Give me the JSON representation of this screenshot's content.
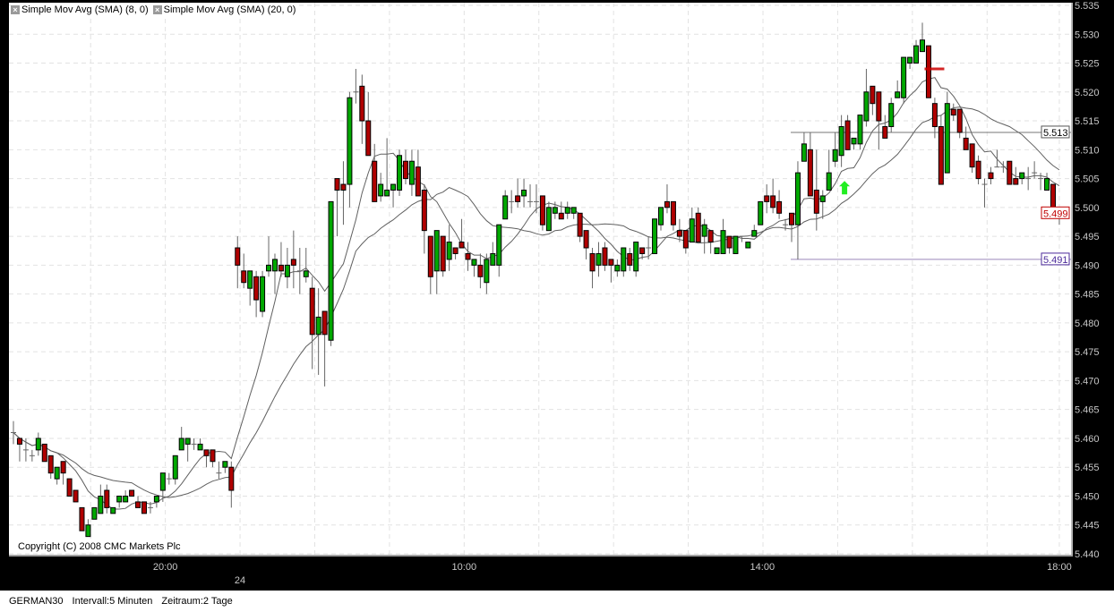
{
  "legend": [
    {
      "label": "Simple Mov Avg (SMA) (8, 0)",
      "icon": "close-icon",
      "period": 8
    },
    {
      "label": "Simple Mov Avg (SMA) (20, 0)",
      "icon": "close-icon",
      "period": 20
    }
  ],
  "copyright": "Copyright (C) 2008 CMC Markets Plc",
  "status": {
    "instrument": "GERMAN30",
    "interval": "Intervall:5 Minuten",
    "period": "Zeitraum:2 Tage"
  },
  "colors": {
    "up": "#00a800",
    "down": "#b00000",
    "sma": "#606060",
    "background": "#000000",
    "plot": "#ffffff",
    "signal_arrow": "#22ee22",
    "signal_marker": "#cc0000",
    "line_high": "#777777",
    "line_low": "#9a88bb"
  },
  "chart_data": {
    "type": "candlestick",
    "title": "",
    "ylim": [
      5.44,
      5.535
    ],
    "y_step": 0.005,
    "y_ticks": [
      "5.535",
      "5.530",
      "5.525",
      "5.520",
      "5.515",
      "5.510",
      "5.505",
      "5.500",
      "5.495",
      "5.490",
      "5.485",
      "5.480",
      "5.475",
      "5.470",
      "5.465",
      "5.460",
      "5.455",
      "5.450",
      "5.445",
      "5.440"
    ],
    "x_ticks": [
      {
        "label": "20:00",
        "index": 24.4,
        "row": 1
      },
      {
        "label": "24",
        "index": 36.4,
        "row": 2
      },
      {
        "label": "10:00",
        "index": 72.4,
        "row": 1
      },
      {
        "label": "14:00",
        "index": 120.3,
        "row": 1
      },
      {
        "label": "18:00",
        "index": 168,
        "row": 1
      }
    ],
    "grid": true,
    "ohlc_fields": [
      "open",
      "high",
      "low",
      "close"
    ],
    "candles": [
      [
        5.461,
        5.463,
        5.459,
        5.461
      ],
      [
        5.46,
        5.46,
        5.456,
        5.459
      ],
      [
        5.458,
        5.46,
        5.456,
        5.458
      ],
      [
        5.457,
        5.458,
        5.456,
        5.457
      ],
      [
        5.458,
        5.461,
        5.457,
        5.46
      ],
      [
        5.459,
        5.459,
        5.456,
        5.456
      ],
      [
        5.457,
        5.457,
        5.453,
        5.454
      ],
      [
        5.453,
        5.455,
        5.452,
        5.455
      ],
      [
        5.456,
        5.456,
        5.452,
        5.454
      ],
      [
        5.453,
        5.453,
        5.45,
        5.45
      ],
      [
        5.451,
        5.451,
        5.449,
        5.449
      ],
      [
        5.448,
        5.448,
        5.444,
        5.444
      ],
      [
        5.443,
        5.446,
        5.443,
        5.445
      ],
      [
        5.446,
        5.448,
        5.446,
        5.448
      ],
      [
        5.447,
        5.452,
        5.447,
        5.45
      ],
      [
        5.451,
        5.452,
        5.447,
        5.448
      ],
      [
        5.447,
        5.448,
        5.447,
        5.448
      ],
      [
        5.449,
        5.45,
        5.448,
        5.45
      ],
      [
        5.449,
        5.451,
        5.449,
        5.45
      ],
      [
        5.451,
        5.451,
        5.45,
        5.45
      ],
      [
        5.449,
        5.45,
        5.448,
        5.448
      ],
      [
        5.449,
        5.449,
        5.447,
        5.447
      ],
      [
        5.448,
        5.449,
        5.447,
        5.448
      ],
      [
        5.449,
        5.45,
        5.448,
        5.45
      ],
      [
        5.451,
        5.454,
        5.449,
        5.454
      ],
      [
        5.453,
        5.454,
        5.452,
        5.453
      ],
      [
        5.453,
        5.457,
        5.452,
        5.457
      ],
      [
        5.458,
        5.462,
        5.458,
        5.46
      ],
      [
        5.459,
        5.46,
        5.456,
        5.46
      ],
      [
        5.459,
        5.46,
        5.458,
        5.459
      ],
      [
        5.458,
        5.46,
        5.458,
        5.459
      ],
      [
        5.458,
        5.458,
        5.455,
        5.457
      ],
      [
        5.458,
        5.458,
        5.455,
        5.456
      ],
      [
        5.454,
        5.456,
        5.453,
        5.454
      ],
      [
        5.455,
        5.456,
        5.454,
        5.456
      ],
      [
        5.455,
        5.456,
        5.448,
        5.451
      ],
      [
        5.493,
        5.495,
        5.486,
        5.49
      ],
      [
        5.489,
        5.492,
        5.486,
        5.487
      ],
      [
        5.486,
        5.489,
        5.483,
        5.489
      ],
      [
        5.488,
        5.489,
        5.481,
        5.484
      ],
      [
        5.482,
        5.489,
        5.481,
        5.488
      ],
      [
        5.489,
        5.495,
        5.488,
        5.49
      ],
      [
        5.489,
        5.492,
        5.485,
        5.491
      ],
      [
        5.49,
        5.494,
        5.488,
        5.489
      ],
      [
        5.488,
        5.493,
        5.486,
        5.49
      ],
      [
        5.491,
        5.496,
        5.486,
        5.49
      ],
      [
        5.489,
        5.493,
        5.485,
        5.489
      ],
      [
        5.488,
        5.493,
        5.487,
        5.489
      ],
      [
        5.486,
        5.488,
        5.472,
        5.478
      ],
      [
        5.478,
        5.486,
        5.471,
        5.481
      ],
      [
        5.482,
        5.482,
        5.469,
        5.478
      ],
      [
        5.477,
        5.501,
        5.476,
        5.501
      ],
      [
        5.505,
        5.505,
        5.495,
        5.503
      ],
      [
        5.504,
        5.508,
        5.497,
        5.503
      ],
      [
        5.504,
        5.52,
        5.5,
        5.519
      ],
      [
        5.52,
        5.524,
        5.518,
        5.52
      ],
      [
        5.521,
        5.523,
        5.511,
        5.515
      ],
      [
        5.515,
        5.52,
        5.509,
        5.509
      ],
      [
        5.508,
        5.511,
        5.501,
        5.501
      ],
      [
        5.502,
        5.506,
        5.501,
        5.504
      ],
      [
        5.502,
        5.512,
        5.502,
        5.503
      ],
      [
        5.503,
        5.504,
        5.5,
        5.504
      ],
      [
        5.503,
        5.51,
        5.502,
        5.509
      ],
      [
        5.508,
        5.51,
        5.504,
        5.505
      ],
      [
        5.504,
        5.51,
        5.502,
        5.508
      ],
      [
        5.507,
        5.51,
        5.502,
        5.502
      ],
      [
        5.503,
        5.504,
        5.492,
        5.496
      ],
      [
        5.495,
        5.495,
        5.485,
        5.488
      ],
      [
        5.489,
        5.496,
        5.485,
        5.496
      ],
      [
        5.495,
        5.495,
        5.488,
        5.489
      ],
      [
        5.491,
        5.497,
        5.489,
        5.494
      ],
      [
        5.493,
        5.493,
        5.491,
        5.492
      ],
      [
        5.494,
        5.498,
        5.493,
        5.493
      ],
      [
        5.492,
        5.494,
        5.489,
        5.491
      ],
      [
        5.49,
        5.491,
        5.488,
        5.491
      ],
      [
        5.49,
        5.492,
        5.486,
        5.488
      ],
      [
        5.487,
        5.492,
        5.485,
        5.491
      ],
      [
        5.49,
        5.494,
        5.49,
        5.492
      ],
      [
        5.49,
        5.497,
        5.488,
        5.497
      ],
      [
        5.498,
        5.503,
        5.498,
        5.502
      ],
      [
        5.501,
        5.503,
        5.499,
        5.501
      ],
      [
        5.502,
        5.505,
        5.5,
        5.501
      ],
      [
        5.502,
        5.505,
        5.5,
        5.503
      ],
      [
        5.501,
        5.504,
        5.5,
        5.501
      ],
      [
        5.501,
        5.504,
        5.499,
        5.501
      ],
      [
        5.502,
        5.502,
        5.496,
        5.497
      ],
      [
        5.496,
        5.501,
        5.496,
        5.5
      ],
      [
        5.499,
        5.501,
        5.498,
        5.5
      ],
      [
        5.499,
        5.501,
        5.498,
        5.498
      ],
      [
        5.499,
        5.501,
        5.498,
        5.5
      ],
      [
        5.499,
        5.5,
        5.498,
        5.5
      ],
      [
        5.499,
        5.499,
        5.494,
        5.495
      ],
      [
        5.496,
        5.496,
        5.491,
        5.493
      ],
      [
        5.492,
        5.493,
        5.486,
        5.489
      ],
      [
        5.49,
        5.494,
        5.488,
        5.492
      ],
      [
        5.493,
        5.494,
        5.489,
        5.49
      ],
      [
        5.491,
        5.491,
        5.487,
        5.49
      ],
      [
        5.489,
        5.491,
        5.488,
        5.49
      ],
      [
        5.489,
        5.493,
        5.488,
        5.493
      ],
      [
        5.492,
        5.493,
        5.489,
        5.49
      ],
      [
        5.489,
        5.494,
        5.488,
        5.494
      ],
      [
        5.493,
        5.493,
        5.491,
        5.492
      ],
      [
        5.493,
        5.495,
        5.491,
        5.493
      ],
      [
        5.492,
        5.498,
        5.492,
        5.498
      ],
      [
        5.497,
        5.5,
        5.496,
        5.5
      ],
      [
        5.501,
        5.504,
        5.499,
        5.5
      ],
      [
        5.501,
        5.501,
        5.496,
        5.497
      ],
      [
        5.496,
        5.498,
        5.494,
        5.495
      ],
      [
        5.496,
        5.496,
        5.492,
        5.493
      ],
      [
        5.494,
        5.5,
        5.494,
        5.498
      ],
      [
        5.499,
        5.5,
        5.494,
        5.494
      ],
      [
        5.495,
        5.498,
        5.492,
        5.497
      ],
      [
        5.496,
        5.496,
        5.492,
        5.494
      ],
      [
        5.492,
        5.493,
        5.492,
        5.493
      ],
      [
        5.492,
        5.498,
        5.492,
        5.496
      ],
      [
        5.495,
        5.495,
        5.492,
        5.493
      ],
      [
        5.492,
        5.495,
        5.492,
        5.495
      ],
      [
        5.495,
        5.495,
        5.494,
        5.495
      ],
      [
        5.493,
        5.494,
        5.493,
        5.494
      ],
      [
        5.495,
        5.497,
        5.495,
        5.496
      ],
      [
        5.497,
        5.501,
        5.497,
        5.501
      ],
      [
        5.502,
        5.504,
        5.499,
        5.501
      ],
      [
        5.502,
        5.505,
        5.499,
        5.5
      ],
      [
        5.501,
        5.503,
        5.498,
        5.499
      ],
      [
        5.497,
        5.498,
        5.496,
        5.497
      ],
      [
        5.499,
        5.499,
        5.494,
        5.497
      ],
      [
        5.497,
        5.508,
        5.491,
        5.506
      ],
      [
        5.508,
        5.513,
        5.508,
        5.511
      ],
      [
        5.51,
        5.513,
        5.502,
        5.502
      ],
      [
        5.503,
        5.51,
        5.496,
        5.499
      ],
      [
        5.501,
        5.503,
        5.498,
        5.502
      ],
      [
        5.503,
        5.51,
        5.503,
        5.506
      ],
      [
        5.508,
        5.513,
        5.507,
        5.51
      ],
      [
        5.509,
        5.516,
        5.507,
        5.514
      ],
      [
        5.515,
        5.516,
        5.51,
        5.51
      ],
      [
        5.511,
        5.512,
        5.51,
        5.512
      ],
      [
        5.511,
        5.516,
        5.51,
        5.516
      ],
      [
        5.515,
        5.524,
        5.514,
        5.52
      ],
      [
        5.521,
        5.521,
        5.516,
        5.518
      ],
      [
        5.52,
        5.52,
        5.51,
        5.515
      ],
      [
        5.514,
        5.516,
        5.512,
        5.512
      ],
      [
        5.514,
        5.519,
        5.513,
        5.518
      ],
      [
        5.519,
        5.522,
        5.519,
        5.52
      ],
      [
        5.519,
        5.526,
        5.518,
        5.526
      ],
      [
        5.525,
        5.526,
        5.524,
        5.526
      ],
      [
        5.525,
        5.529,
        5.525,
        5.528
      ],
      [
        5.527,
        5.532,
        5.527,
        5.529
      ],
      [
        5.528,
        5.528,
        5.519,
        5.519
      ],
      [
        5.518,
        5.519,
        5.512,
        5.514
      ],
      [
        5.514,
        5.516,
        5.504,
        5.504
      ],
      [
        5.506,
        5.52,
        5.506,
        5.518
      ],
      [
        5.517,
        5.518,
        5.515,
        5.516
      ],
      [
        5.517,
        5.517,
        5.512,
        5.513
      ],
      [
        5.512,
        5.514,
        5.51,
        5.51
      ],
      [
        5.511,
        5.511,
        5.506,
        5.507
      ],
      [
        5.508,
        5.509,
        5.504,
        5.505
      ],
      [
        5.504,
        5.505,
        5.5,
        5.504
      ],
      [
        5.506,
        5.507,
        5.504,
        5.505
      ],
      [
        5.507,
        5.51,
        5.507,
        5.507
      ],
      [
        5.507,
        5.508,
        5.506,
        5.507
      ],
      [
        5.508,
        5.508,
        5.504,
        5.504
      ],
      [
        5.505,
        5.507,
        5.504,
        5.504
      ],
      [
        5.505,
        5.506,
        5.504,
        5.506
      ],
      [
        5.505,
        5.507,
        5.503,
        5.505
      ],
      [
        5.506,
        5.508,
        5.505,
        5.506
      ],
      [
        5.505,
        5.506,
        5.503,
        5.505
      ],
      [
        5.503,
        5.506,
        5.503,
        5.505
      ],
      [
        5.504,
        5.504,
        5.499,
        5.5
      ],
      [
        5.499,
        5.5,
        5.497,
        5.499
      ]
    ],
    "indicators": [
      {
        "name": "Simple Mov Avg (SMA) (8, 0)",
        "type": "sma",
        "period": 8
      },
      {
        "name": "Simple Mov Avg (SMA) (20, 0)",
        "type": "sma",
        "period": 20
      }
    ],
    "horizontal_lines": [
      {
        "value": 5.513,
        "label": "5.513",
        "from_index": 125,
        "style": "high"
      },
      {
        "value": 5.491,
        "label": "5.491",
        "from_index": 125,
        "style": "low"
      }
    ],
    "last_price": {
      "value": 5.499,
      "label": "5.499"
    },
    "signals": [
      {
        "type": "buy-arrow",
        "index": 133.5,
        "price": 5.5035
      },
      {
        "type": "sell-marker",
        "index": 146.5,
        "price": 5.524
      }
    ]
  }
}
